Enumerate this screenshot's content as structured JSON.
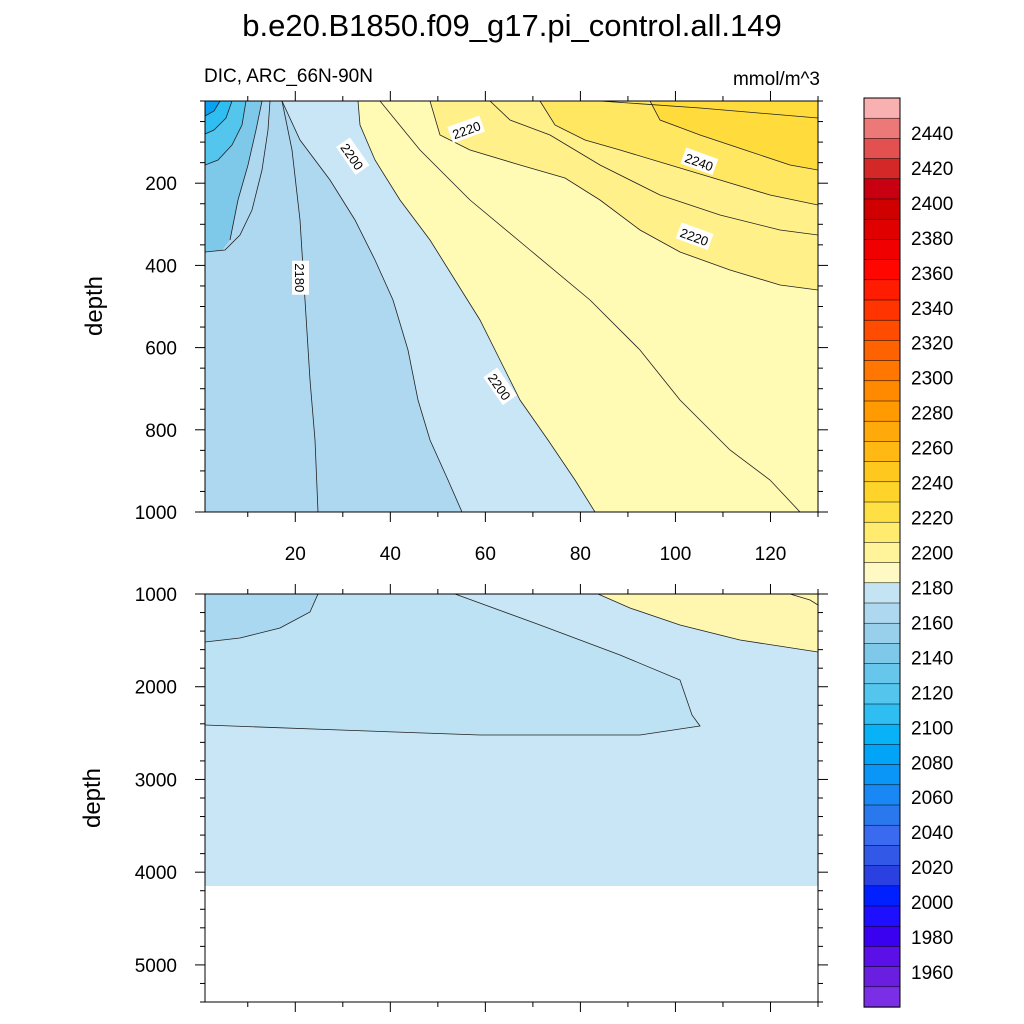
{
  "chart_data": {
    "type": "contour",
    "title": "b.e20.B1850.f09_g17.pi_control.all.149",
    "left_subtitle": "DIC, ARC_66N-90N",
    "right_subtitle": "mmol/m^3",
    "xlim": [
      1,
      130
    ],
    "x_ticks": [
      20,
      40,
      60,
      80,
      100,
      120
    ],
    "panels": [
      {
        "name": "upper",
        "ylabel": "depth",
        "ylim": [
          0,
          1000
        ],
        "y_ticks": [
          200,
          400,
          600,
          800,
          1000
        ],
        "contour_labels": [
          {
            "text": "2220",
            "x": 56,
            "y": 70
          },
          {
            "text": "2200",
            "x": 32,
            "y": 135
          },
          {
            "text": "2240",
            "x": 105,
            "y": 148
          },
          {
            "text": "2220",
            "x": 104,
            "y": 330
          },
          {
            "text": "2180",
            "x": 21,
            "y": 430
          },
          {
            "text": "2200",
            "x": 63,
            "y": 695
          }
        ],
        "regions": [
          {
            "level": 2190,
            "color": "#c8e6f6"
          },
          {
            "level": 2210,
            "color": "#fffab4"
          },
          {
            "level": 2220,
            "color": "#fff08a"
          },
          {
            "level": 2230,
            "color": "#ffe761"
          },
          {
            "level": 2240,
            "color": "#ffdc3c"
          }
        ]
      },
      {
        "name": "lower",
        "ylabel": "depth",
        "ylim": [
          1000,
          5400
        ],
        "y_ticks": [
          1000,
          2000,
          3000,
          4000,
          5000
        ],
        "bottom_depth": 4120,
        "regions": [
          {
            "level": 2180,
            "color": "#a9d8f0"
          },
          {
            "level": 2185,
            "color": "#bde2f3"
          },
          {
            "level": 2190,
            "color": "#c8e6f6"
          },
          {
            "level": 2205,
            "color": "#fff7b0"
          }
        ]
      }
    ],
    "colorbar": {
      "levels": [
        1960,
        1980,
        2000,
        2020,
        2040,
        2060,
        2080,
        2100,
        2120,
        2140,
        2160,
        2180,
        2200,
        2220,
        2240,
        2260,
        2280,
        2300,
        2320,
        2340,
        2360,
        2380,
        2400,
        2420,
        2440
      ],
      "colors": [
        "#a0fffa",
        "#7a2ee6",
        "#6a1fe0",
        "#5a10e6",
        "#3a00f0",
        "#1e10ff",
        "#0020ff",
        "#2a40e0",
        "#3258e8",
        "#3a6af0",
        "#2a78ee",
        "#1a88f4",
        "#0a96f6",
        "#02a4f8",
        "#08b2f6",
        "#2ebef2",
        "#54c6ee",
        "#66c6ec",
        "#7ec8ea",
        "#98d0ec",
        "#aed8f0",
        "#c4e4f4",
        "#fffac4",
        "#fff49a",
        "#ffeb6e",
        "#ffe044",
        "#ffd42a",
        "#ffc81e",
        "#ffb912",
        "#ffaa0a",
        "#ff9a00",
        "#ff8a00",
        "#ff7600",
        "#ff6200",
        "#ff4c00",
        "#ff3400",
        "#ff1c00",
        "#ff0600",
        "#f00000",
        "#e00000",
        "#d00000",
        "#c80012",
        "#d42828",
        "#e25050",
        "#ec7878",
        "#f8b0b0"
      ]
    }
  }
}
